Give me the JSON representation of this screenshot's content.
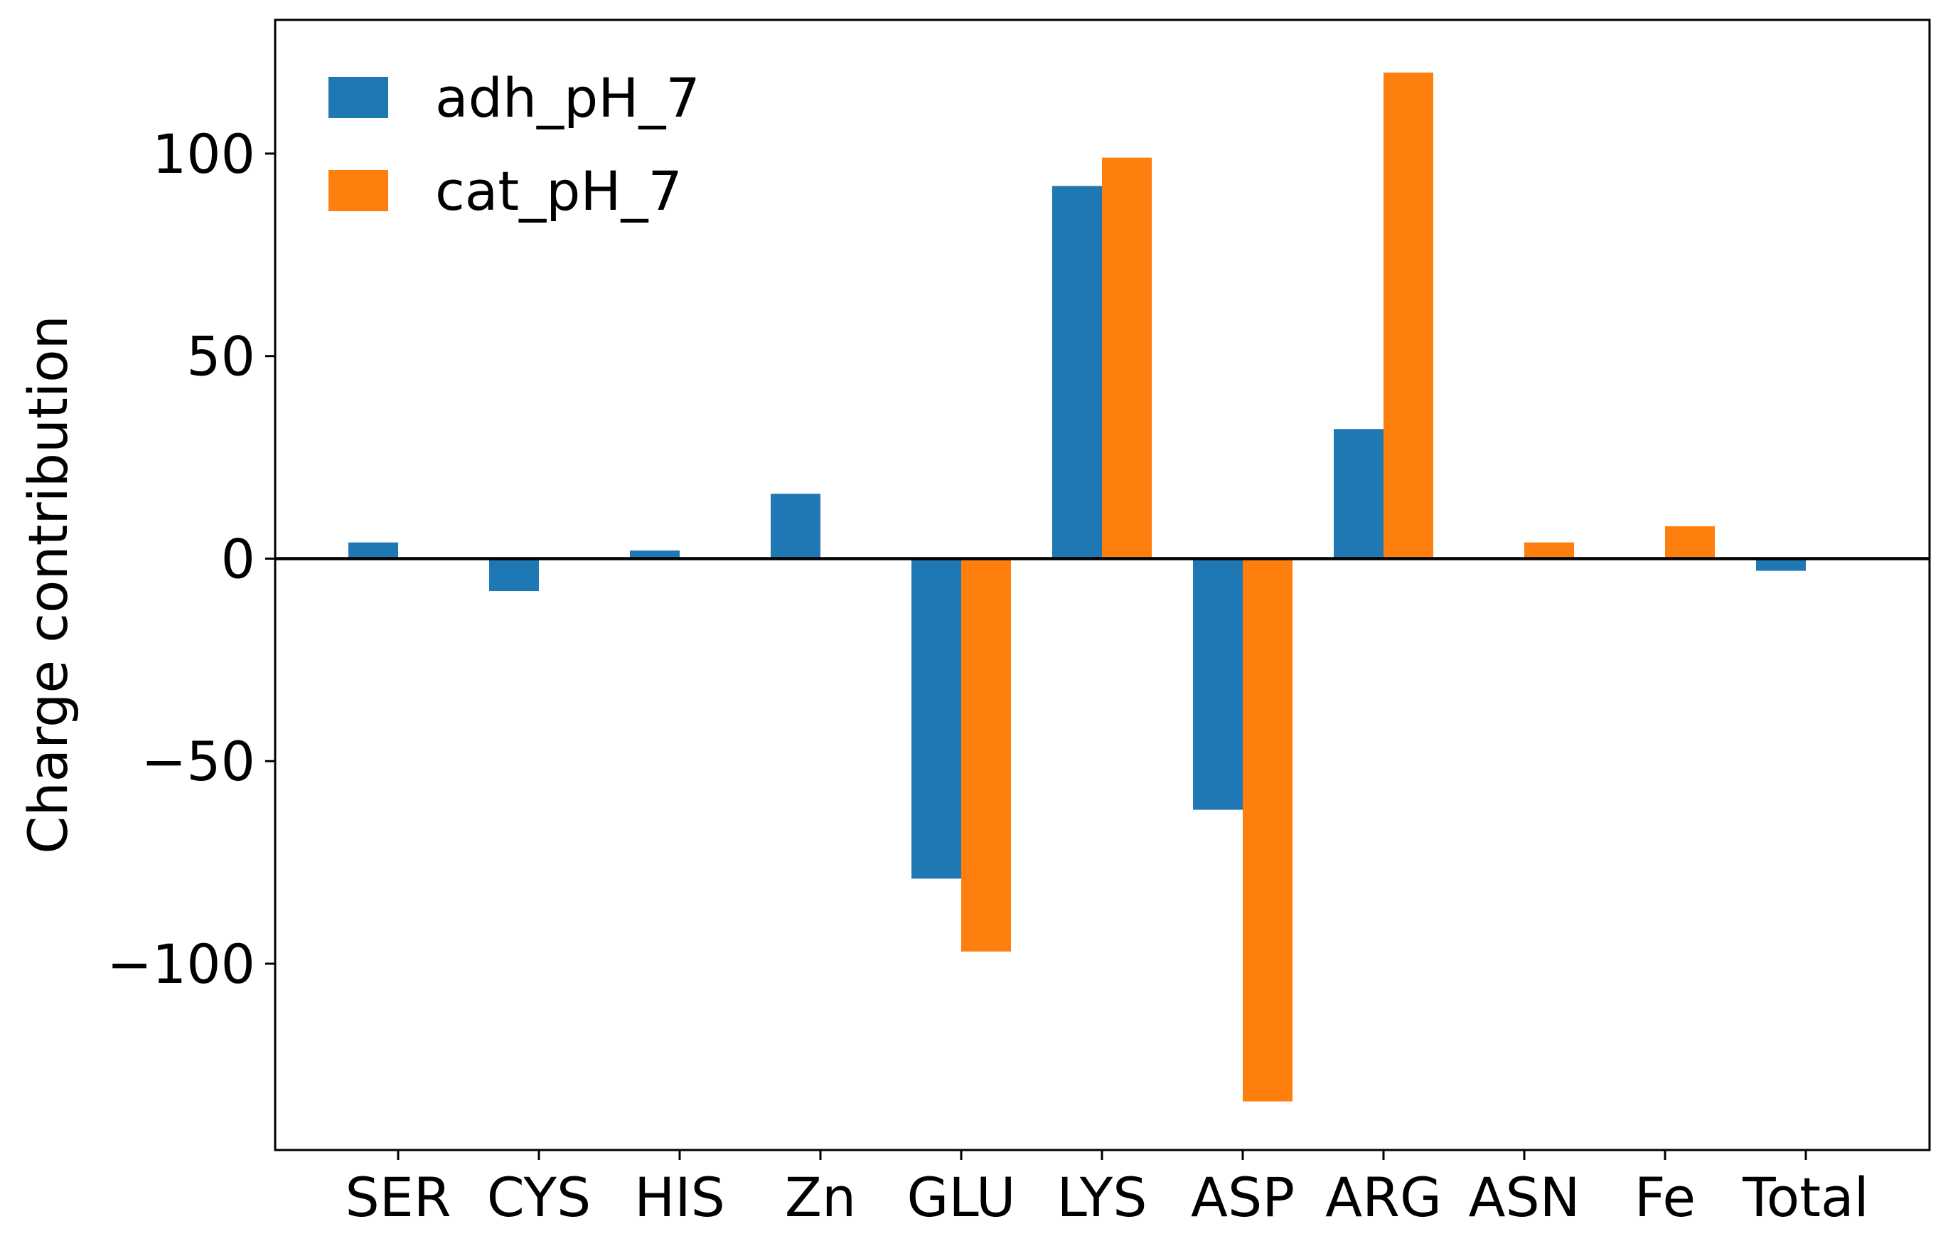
{
  "chart_data": {
    "type": "bar",
    "title": "",
    "xlabel": "",
    "ylabel": "Charge contribution",
    "categories": [
      "SER",
      "CYS",
      "HIS",
      "Zn",
      "GLU",
      "LYS",
      "ASP",
      "ARG",
      "ASN",
      "Fe",
      "Total"
    ],
    "series": [
      {
        "name": "adh_pH_7",
        "color": "#1f77b4",
        "values": [
          4,
          -8,
          2,
          16,
          -79,
          92,
          -62,
          32,
          0,
          0,
          -3
        ]
      },
      {
        "name": "cat_pH_7",
        "color": "#ff7f0e",
        "values": [
          0,
          0,
          0,
          0,
          -97,
          99,
          -134,
          120,
          4,
          8,
          0
        ]
      }
    ],
    "ylim": [
      -146,
      133
    ],
    "yticks": [
      100,
      50,
      0,
      -50,
      -100
    ],
    "ytick_labels": [
      "100",
      "50",
      "0",
      "−50",
      "−100"
    ],
    "zero_line": true,
    "grid": false,
    "legend_position": "top-left"
  }
}
